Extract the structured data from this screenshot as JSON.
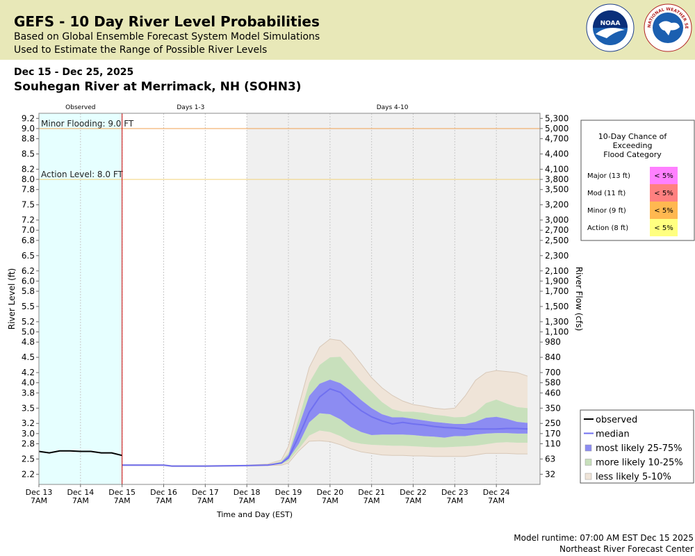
{
  "header": {
    "title": "GEFS - 10 Day River Level Probabilities",
    "subtitle_1": "Based on Global Ensemble Forecast System Model Simulations",
    "subtitle_2": "Used to Estimate the Range of Possible River Levels",
    "noaa_logo_text": "NOAA",
    "nws_logo_text": "NATIONAL WEATHER SERVICE"
  },
  "date_range": "Dec 15 - Dec 25, 2025",
  "station_title": "Souhegan River at Merrimack, NH (SOHN3)",
  "footer": {
    "model_runtime": "Model runtime: 07:00 AM EST Dec 15 2025",
    "center": "Northeast River Forecast Center"
  },
  "colors": {
    "observed_bg": "#e6ffff",
    "forecast_bg": "#f0f0f0",
    "observed_line": "#000000",
    "median_line": "#7070f0",
    "band_25_75": "#8c8cf2",
    "band_10_25": "#c8e0bc",
    "band_5_10": "#efe4d8",
    "minor_line": "#f0a050",
    "action_line": "#f2d278",
    "now_line": "#cc0000"
  },
  "chart_data": {
    "type": "area",
    "x_unit": "days since Dec 13 7AM",
    "xlabel": "Time and Day (EST)",
    "ylabel_left": "River Level (ft)",
    "ylabel_right": "River Flow (cfs)",
    "ylim": [
      2.0,
      9.3
    ],
    "xlim": [
      0,
      12.05
    ],
    "section_labels": [
      {
        "label": "Observed",
        "x": 1
      },
      {
        "label": "Days 1-3",
        "x": 3.65
      },
      {
        "label": "Days 4-10",
        "x": 8.5
      }
    ],
    "sections": {
      "observed_end": 2,
      "days13_end": 5
    },
    "x_ticks": [
      {
        "x": 0,
        "day": "Dec 13",
        "time": "7AM"
      },
      {
        "x": 1,
        "day": "Dec 14",
        "time": "7AM"
      },
      {
        "x": 2,
        "day": "Dec 15",
        "time": "7AM"
      },
      {
        "x": 3,
        "day": "Dec 16",
        "time": "7AM"
      },
      {
        "x": 4,
        "day": "Dec 17",
        "time": "7AM"
      },
      {
        "x": 5,
        "day": "Dec 18",
        "time": "7AM"
      },
      {
        "x": 6,
        "day": "Dec 19",
        "time": "7AM"
      },
      {
        "x": 7,
        "day": "Dec 20",
        "time": "7AM"
      },
      {
        "x": 8,
        "day": "Dec 21",
        "time": "7AM"
      },
      {
        "x": 9,
        "day": "Dec 22",
        "time": "7AM"
      },
      {
        "x": 10,
        "day": "Dec 23",
        "time": "7AM"
      },
      {
        "x": 11,
        "day": "Dec 24",
        "time": "7AM"
      }
    ],
    "y_ticks": [
      {
        "ft": 9.2,
        "label": "9.2",
        "cfs": "5,300"
      },
      {
        "ft": 9.0,
        "label": "9.0",
        "cfs": "5,000"
      },
      {
        "ft": 8.8,
        "label": "8.8",
        "cfs": "4,700"
      },
      {
        "ft": 8.5,
        "label": "8.5",
        "cfs": "4,400"
      },
      {
        "ft": 8.2,
        "label": "8.2",
        "cfs": "4,100"
      },
      {
        "ft": 8.0,
        "label": "8.0",
        "cfs": "3,800"
      },
      {
        "ft": 7.8,
        "label": "7.8",
        "cfs": "3,500"
      },
      {
        "ft": 7.5,
        "label": "7.5",
        "cfs": "3,200"
      },
      {
        "ft": 7.2,
        "label": "7.2",
        "cfs": "3,000"
      },
      {
        "ft": 7.0,
        "label": "7.0",
        "cfs": "2,700"
      },
      {
        "ft": 6.8,
        "label": "6.8",
        "cfs": "2,500"
      },
      {
        "ft": 6.5,
        "label": "6.5",
        "cfs": "2,300"
      },
      {
        "ft": 6.2,
        "label": "6.2",
        "cfs": "2,100"
      },
      {
        "ft": 6.0,
        "label": "6.0",
        "cfs": "1,900"
      },
      {
        "ft": 5.8,
        "label": "5.8",
        "cfs": "1,700"
      },
      {
        "ft": 5.5,
        "label": "5.5",
        "cfs": "1,500"
      },
      {
        "ft": 5.2,
        "label": "5.2",
        "cfs": "1,300"
      },
      {
        "ft": 5.0,
        "label": "5.0",
        "cfs": "1,100"
      },
      {
        "ft": 4.8,
        "label": "4.8",
        "cfs": "980"
      },
      {
        "ft": 4.5,
        "label": "4.5",
        "cfs": "840"
      },
      {
        "ft": 4.2,
        "label": "4.2",
        "cfs": "700"
      },
      {
        "ft": 4.0,
        "label": "4.0",
        "cfs": "580"
      },
      {
        "ft": 3.8,
        "label": "3.8",
        "cfs": "460"
      },
      {
        "ft": 3.5,
        "label": "3.5",
        "cfs": "350"
      },
      {
        "ft": 3.2,
        "label": "3.2",
        "cfs": "250"
      },
      {
        "ft": 3.0,
        "label": "3.0",
        "cfs": "170"
      },
      {
        "ft": 2.8,
        "label": "2.8",
        "cfs": "110"
      },
      {
        "ft": 2.5,
        "label": "2.5",
        "cfs": "63"
      },
      {
        "ft": 2.2,
        "label": "2.2",
        "cfs": "32"
      }
    ],
    "thresholds": [
      {
        "name": "Minor Flooding",
        "label": "Minor Flooding: 9.0 FT",
        "ft": 9.0
      },
      {
        "name": "Action Level",
        "label": "Action Level: 8.0 FT",
        "ft": 8.0
      }
    ],
    "observed": {
      "x": [
        0,
        0.25,
        0.5,
        0.75,
        1,
        1.25,
        1.5,
        1.75,
        2
      ],
      "y": [
        2.65,
        2.62,
        2.66,
        2.66,
        2.65,
        2.65,
        2.62,
        2.62,
        2.57
      ]
    },
    "forecast_x": [
      2.0,
      3.0,
      3.2,
      4.0,
      5.0,
      5.5,
      5.83,
      6.0,
      6.25,
      6.5,
      6.75,
      7.0,
      7.25,
      7.5,
      7.75,
      8.0,
      8.25,
      8.5,
      8.75,
      9.0,
      9.25,
      9.5,
      9.75,
      10.0,
      10.25,
      10.5,
      10.75,
      11.0,
      11.25,
      11.5,
      11.75
    ],
    "median": [
      2.38,
      2.38,
      2.36,
      2.36,
      2.37,
      2.38,
      2.42,
      2.52,
      2.95,
      3.42,
      3.72,
      3.88,
      3.81,
      3.61,
      3.45,
      3.33,
      3.25,
      3.19,
      3.22,
      3.19,
      3.17,
      3.14,
      3.12,
      3.11,
      3.09,
      3.09,
      3.09,
      3.09,
      3.1,
      3.1,
      3.09
    ],
    "p25": [
      2.38,
      2.38,
      2.36,
      2.36,
      2.37,
      2.38,
      2.41,
      2.5,
      2.8,
      3.22,
      3.4,
      3.38,
      3.28,
      3.13,
      3.03,
      2.97,
      2.98,
      2.98,
      2.98,
      2.97,
      2.95,
      2.94,
      2.92,
      2.95,
      2.95,
      2.98,
      3.0,
      3.01,
      3.01,
      3.0,
      3.0
    ],
    "p75": [
      2.38,
      2.38,
      2.36,
      2.36,
      2.37,
      2.38,
      2.44,
      2.58,
      3.15,
      3.74,
      3.98,
      4.06,
      3.99,
      3.84,
      3.66,
      3.5,
      3.38,
      3.32,
      3.32,
      3.29,
      3.26,
      3.23,
      3.21,
      3.19,
      3.19,
      3.23,
      3.31,
      3.33,
      3.29,
      3.23,
      3.21
    ],
    "p10": [
      2.38,
      2.38,
      2.36,
      2.36,
      2.37,
      2.38,
      2.4,
      2.46,
      2.7,
      2.96,
      3.06,
      3.03,
      2.95,
      2.84,
      2.8,
      2.78,
      2.77,
      2.76,
      2.76,
      2.75,
      2.74,
      2.73,
      2.73,
      2.74,
      2.75,
      2.76,
      2.79,
      2.82,
      2.83,
      2.82,
      2.82
    ],
    "p90": [
      2.38,
      2.38,
      2.36,
      2.36,
      2.37,
      2.38,
      2.46,
      2.62,
      3.3,
      4.0,
      4.35,
      4.5,
      4.51,
      4.27,
      4.03,
      3.82,
      3.62,
      3.48,
      3.43,
      3.43,
      3.41,
      3.37,
      3.35,
      3.32,
      3.33,
      3.42,
      3.6,
      3.67,
      3.59,
      3.52,
      3.5
    ],
    "p5": [
      2.37,
      2.37,
      2.35,
      2.35,
      2.36,
      2.37,
      2.38,
      2.42,
      2.66,
      2.85,
      2.86,
      2.84,
      2.78,
      2.7,
      2.64,
      2.61,
      2.58,
      2.57,
      2.57,
      2.56,
      2.56,
      2.55,
      2.55,
      2.55,
      2.55,
      2.58,
      2.61,
      2.61,
      2.61,
      2.6,
      2.6
    ],
    "p95": [
      2.39,
      2.39,
      2.37,
      2.37,
      2.38,
      2.4,
      2.48,
      2.75,
      3.55,
      4.3,
      4.7,
      4.86,
      4.83,
      4.63,
      4.37,
      4.1,
      3.9,
      3.75,
      3.64,
      3.57,
      3.54,
      3.5,
      3.48,
      3.5,
      3.74,
      4.05,
      4.2,
      4.24,
      4.22,
      4.2,
      4.13
    ],
    "legend": [
      {
        "key": "observed",
        "label": "observed"
      },
      {
        "key": "median",
        "label": "median"
      },
      {
        "key": "b2575",
        "label": "most likely 25-75%"
      },
      {
        "key": "b1025",
        "label": "more likely 10-25%"
      },
      {
        "key": "b0510",
        "label": "less likely 5-10%"
      }
    ],
    "flood_table": {
      "title_lines": [
        "10-Day Chance of",
        "Exceeding",
        "Flood Category"
      ],
      "rows": [
        {
          "category": "Major (13 ft)",
          "value": "< 5%",
          "color": "#ff80ff"
        },
        {
          "category": "Mod (11 ft)",
          "value": "< 5%",
          "color": "#ff8080"
        },
        {
          "category": "Minor (9 ft)",
          "value": "< 5%",
          "color": "#ffb850"
        },
        {
          "category": "Action (8 ft)",
          "value": "< 5%",
          "color": "#ffff80"
        }
      ]
    }
  }
}
